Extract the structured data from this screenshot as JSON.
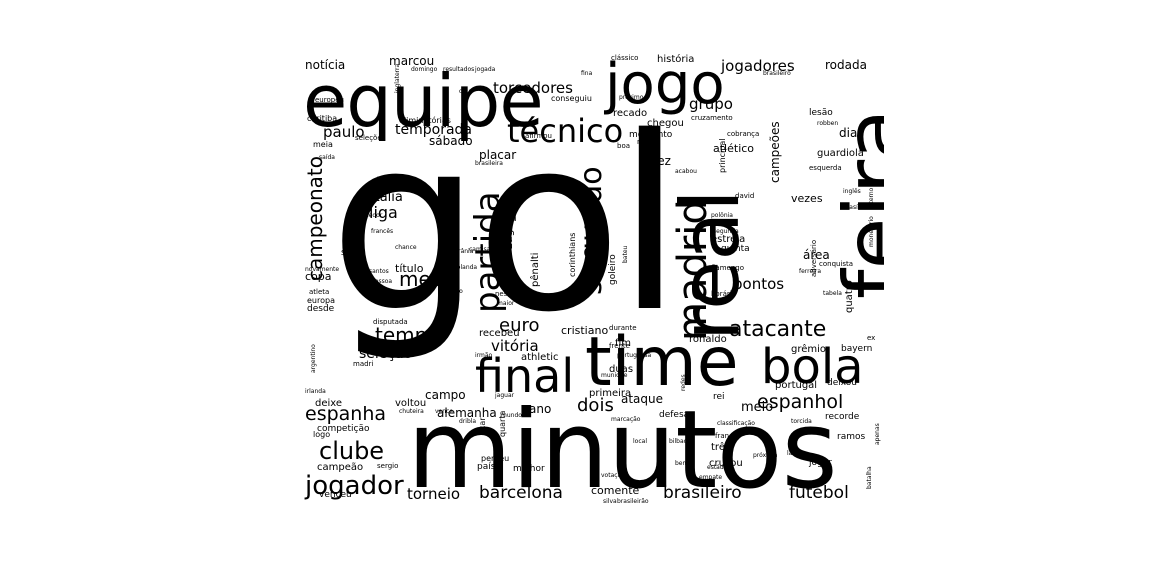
{
  "words": [
    "gol",
    "minutos",
    "equipe",
    "feira",
    "real",
    "time",
    "jogo",
    "madrid",
    "bola",
    "final",
    "técnico",
    "partida",
    "segundo",
    "jogador",
    "atacante",
    "clube",
    "espanha",
    "espanhol",
    "barcelona",
    "brasileiro",
    "futebol",
    "torneio",
    "tempo",
    "campeonato",
    "messi",
    "dois",
    "euro",
    "vitória",
    "jogadores",
    "torcedores",
    "temporada",
    "paulo",
    "liga",
    "itália",
    "seleção",
    "pontos",
    "grupo",
    "marcou",
    "notícia",
    "rodada",
    "história",
    "campo",
    "ataque",
    "meio",
    "ano",
    "alemanha",
    "cristiano",
    "ronaldo",
    "primeira",
    "duas",
    "vai",
    "fez",
    "placar",
    "atlético",
    "sábado",
    "chance",
    "título",
    "área",
    "vezes",
    "quatro",
    "dia",
    "campeões",
    "guardiola",
    "grêmio",
    "bayern",
    "copa",
    "saiu",
    "zagueiro",
    "pênalti",
    "goleiro",
    "corinthians",
    "recado",
    "chegou",
    "momento",
    "principal",
    "estreia",
    "quinta",
    "recebeu",
    "athletic",
    "fim",
    "portugal",
    "deixou",
    "voltou",
    "deixe",
    "competição",
    "campeão",
    "venceu",
    "comente",
    "três",
    "cruzou",
    "jogar",
    "ramos",
    "recorde",
    "defesa",
    "rei",
    "quarta",
    "país",
    "melhor",
    "confira",
    "ficar",
    "perdeu",
    "logo",
    "desde",
    "europa",
    "atleta",
    "madri",
    "disputada",
    "lesão",
    "coritiba",
    "meia",
    "seleções",
    "eliminatórias",
    "conseguiu",
    "clássico",
    "europeu",
    "afirmou",
    "boa",
    "marca",
    "cruzamento",
    "cobrança",
    "esquerda",
    "david",
    "polônia",
    "segunda",
    "flamengo",
    "adversário",
    "conquista",
    "tabela",
    "frente",
    "durante",
    "horário",
    "neste",
    "maior",
    "falta",
    "santos",
    "pessoa",
    "novamente",
    "argentino",
    "irlanda",
    "holanda",
    "camisa",
    "ucrânia",
    "francês",
    "sergio",
    "local",
    "bilbao",
    "frança",
    "torcida",
    "estádio",
    "próxima",
    "lado",
    "mundo",
    "portuguesa",
    "ex",
    "monetário",
    "interno",
    "inglês",
    "brasília",
    "classificação",
    "casa",
    "silva",
    "brasileirão",
    "empate",
    "bem",
    "batalha",
    "acabou",
    "saída",
    "robben",
    "brasileiro",
    "brasileira",
    "resultados",
    "jogada",
    "domingo",
    "inglaterra",
    "próximo",
    "fina",
    "dou",
    "bateu",
    "ceso",
    "chance",
    "irmão",
    "munique",
    "redes",
    "jaguar",
    "apenas",
    "dribla",
    "marcação",
    "votação",
    "ferreira",
    "vence",
    "chuteira",
    "torcedor",
    "madrid"
  ]
}
